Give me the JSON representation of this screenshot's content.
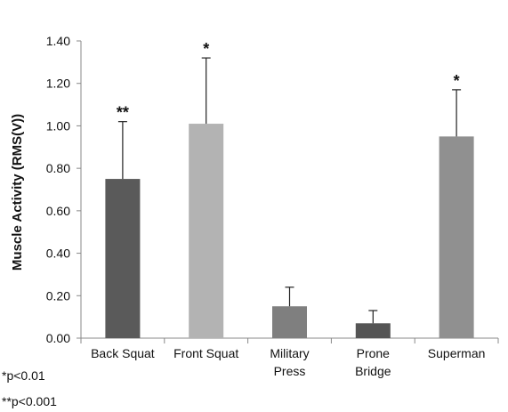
{
  "chart_data": {
    "type": "bar",
    "categories": [
      [
        "Back Squat"
      ],
      [
        "Front Squat"
      ],
      [
        "Military",
        "Press"
      ],
      [
        "Prone",
        "Bridge"
      ],
      [
        "Superman"
      ]
    ],
    "values": [
      0.75,
      1.01,
      0.15,
      0.07,
      0.95
    ],
    "error_upper": [
      1.02,
      1.32,
      0.24,
      0.13,
      1.17
    ],
    "significance": [
      "**",
      "*",
      "",
      "",
      "*"
    ],
    "bar_colors": [
      "#5a5a5a",
      "#b3b3b3",
      "#7f7f7f",
      "#555555",
      "#909090"
    ],
    "ylabel": "Muscle Activity (RMS(V))",
    "ylim": [
      0,
      1.4
    ],
    "yticks": [
      "0.00",
      "0.20",
      "0.40",
      "0.60",
      "0.80",
      "1.00",
      "1.20",
      "1.40"
    ],
    "grid": false,
    "legend": "none"
  },
  "footnotes": [
    "*p<0.01",
    "**p<0.001"
  ]
}
